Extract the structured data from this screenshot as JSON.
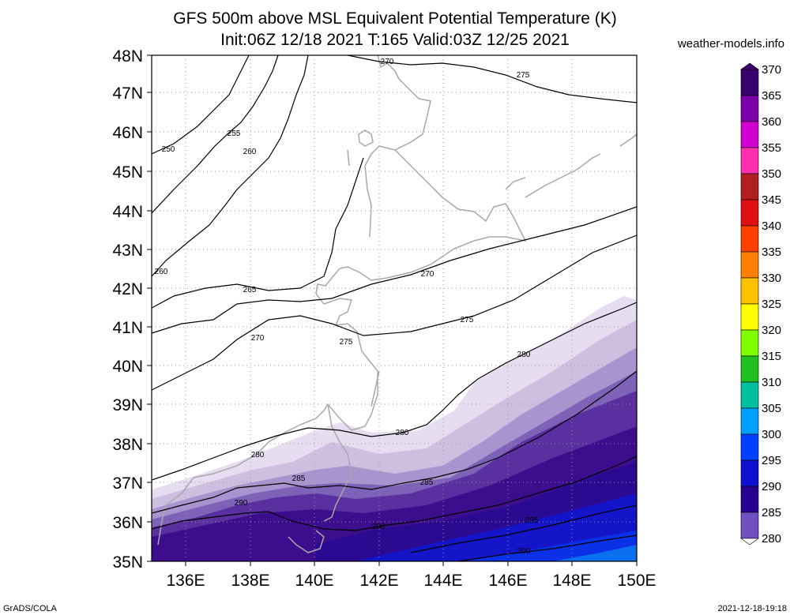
{
  "header": {
    "title_line1": "GFS 500m above MSL Equivalent Potential Temperature (K)",
    "title_line2": "Init:06Z 12/18 2021 T:165 Valid:03Z 12/25 2021",
    "site": "weather-models.info"
  },
  "footer": {
    "left": "GrADS/COLA",
    "right": "2021-12-18-19:18"
  },
  "map": {
    "lat_labels": [
      "48N",
      "47N",
      "46N",
      "45N",
      "44N",
      "43N",
      "42N",
      "41N",
      "40N",
      "39N",
      "38N",
      "37N",
      "36N",
      "35N"
    ],
    "lon_labels": [
      "136E",
      "138E",
      "140E",
      "142E",
      "144E",
      "146E",
      "148E",
      "150E"
    ],
    "contour_labels": [
      "250",
      "255",
      "260",
      "260",
      "265",
      "270",
      "270",
      "270",
      "275",
      "275",
      "275",
      "280",
      "280",
      "280",
      "285",
      "285",
      "290",
      "290",
      "295",
      "300"
    ]
  },
  "colorbar": {
    "labels": [
      "370",
      "365",
      "360",
      "355",
      "350",
      "345",
      "340",
      "335",
      "330",
      "325",
      "320",
      "315",
      "310",
      "305",
      "300",
      "295",
      "290",
      "285",
      "280"
    ],
    "colors": [
      "#3a006e",
      "#7a00a8",
      "#d000d0",
      "#ff30b0",
      "#b02020",
      "#e01010",
      "#ff4000",
      "#ff8000",
      "#ffc000",
      "#ffff00",
      "#80ff00",
      "#20c020",
      "#00c0a0",
      "#00a0ff",
      "#0040ff",
      "#1010d0",
      "#2a0090",
      "#7050c0",
      "#c8b8e0"
    ]
  }
}
